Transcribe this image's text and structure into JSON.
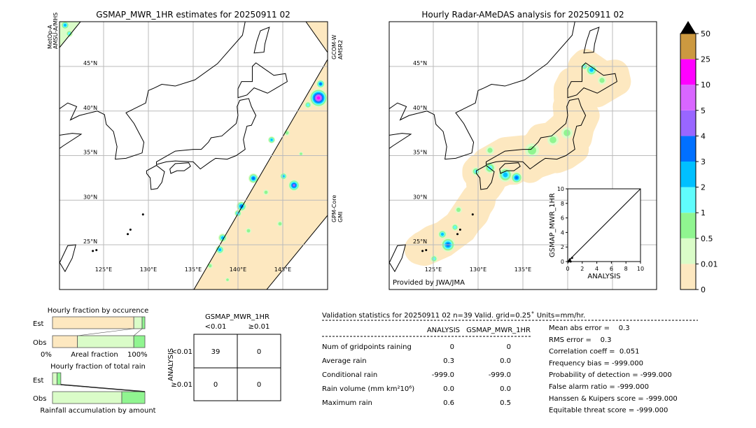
{
  "left_map": {
    "title": "GSMAP_MWR_1HR estimates for 20250911 02",
    "sensor_labels": [
      [
        "MetOp-A",
        "AMSU-A/MHS"
      ],
      [
        "GCOM-W",
        "AMSR2"
      ],
      [
        "GPM-Core",
        "GMI"
      ]
    ],
    "lat_labels": [
      "45°N",
      "40°N",
      "35°N",
      "30°N",
      "25°N"
    ],
    "lon_labels": [
      "125°E",
      "130°E",
      "135°E",
      "140°E",
      "145°E"
    ]
  },
  "right_map": {
    "title": "Hourly Radar-AMeDAS analysis for 20250911 02",
    "credit": "Provided by JWA/JMA",
    "lat_labels": [
      "45°N",
      "40°N",
      "35°N",
      "30°N",
      "25°N"
    ],
    "lon_labels": [
      "125°E",
      "130°E",
      "135°E"
    ]
  },
  "colorbar": {
    "labels": [
      "0",
      "0.01",
      "0.5",
      "1",
      "2",
      "3",
      "4",
      "5",
      "10",
      "25",
      "50"
    ],
    "colors": [
      "#fde8c0",
      "#dafcc8",
      "#90f590",
      "#60fcfc",
      "#00c0ff",
      "#0070ff",
      "#9966ff",
      "#d966ff",
      "#ff00ff",
      "#cc9940"
    ],
    "over_color": "#000000"
  },
  "chart_data": {
    "type": "scatter",
    "xlabel": "ANALYSIS",
    "ylabel": "GSMAP_MWR_1HR",
    "xlim": [
      0,
      10
    ],
    "ylim": [
      0,
      10
    ],
    "xticks": [
      "0",
      "2",
      "4",
      "6",
      "8",
      "10"
    ],
    "yticks": [
      "0",
      "2",
      "4",
      "6",
      "8",
      "10"
    ],
    "points": [
      [
        0.1,
        0.0
      ],
      [
        0.2,
        0.1
      ],
      [
        0.3,
        0.2
      ],
      [
        0.4,
        0.0
      ],
      [
        0.6,
        0.5
      ],
      [
        0.3,
        0.3
      ]
    ]
  },
  "occurrence": {
    "title": "Hourly fraction by occurence",
    "est_label": "Est",
    "obs_label": "Obs",
    "xlabel_left": "0%",
    "xlabel_mid": "Areal fraction",
    "xlabel_right": "100%",
    "est_fractions": [
      0.88,
      0.09,
      0.03
    ],
    "obs_fractions": [
      0.27,
      0.61,
      0.12
    ]
  },
  "total_rain": {
    "title": "Hourly fraction of total rain",
    "est_label": "Est",
    "obs_label": "Obs",
    "xlabel": "Rainfall accumulation by amount",
    "est_fractions": [
      0.05,
      0.04
    ],
    "obs_fractions": [
      0.75,
      0.25
    ]
  },
  "contingency": {
    "col_title": "GSMAP_MWR_1HR",
    "col_headers": [
      "<0.01",
      "≥0.01"
    ],
    "row_title": "ANALYSIS",
    "row_headers": [
      "<0.01",
      "≥0.01"
    ],
    "cells": [
      [
        "39",
        "0"
      ],
      [
        "0",
        "0"
      ]
    ]
  },
  "stats": {
    "title": "Validation statistics for 20250911 02  n=39 Valid. grid=0.25˚ Units=mm/hr.",
    "col_headers": [
      "ANALYSIS",
      "GSMAP_MWR_1HR"
    ],
    "rows": [
      {
        "label": "Num of gridpoints raining",
        "a": "0",
        "b": "0"
      },
      {
        "label": "Average rain",
        "a": "0.3",
        "b": "0.0"
      },
      {
        "label": "Conditional rain",
        "a": "-999.0",
        "b": "-999.0"
      },
      {
        "label": "Rain volume (mm km²10⁶)",
        "a": "0.0",
        "b": "0.0"
      },
      {
        "label": "Maximum rain",
        "a": "0.6",
        "b": "0.5"
      }
    ],
    "scores": [
      "Mean abs error =    0.3",
      "RMS error =    0.3",
      "Correlation coeff =  0.051",
      "Frequency bias = -999.000",
      "Probability of detection = -999.000",
      "False alarm ratio = -999.000",
      "Hanssen & Kuipers score = -999.000",
      "Equitable threat score = -999.000"
    ]
  }
}
